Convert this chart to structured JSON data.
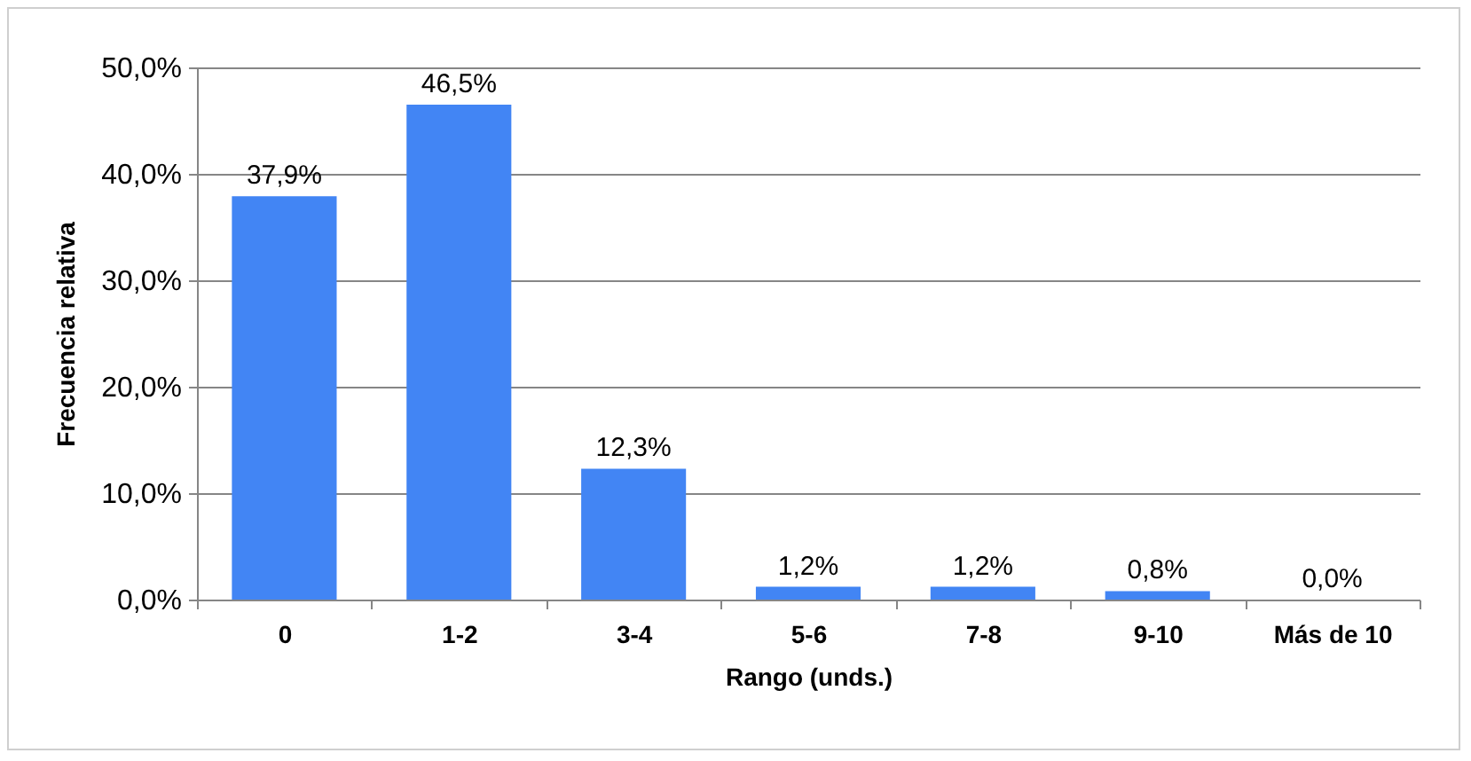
{
  "chart_data": {
    "type": "bar",
    "xlabel": "Rango (unds.)",
    "ylabel": "Frecuencia relativa",
    "categories": [
      "0",
      "1-2",
      "3-4",
      "5-6",
      "7-8",
      "9-10",
      "Más de 10"
    ],
    "values": [
      37.9,
      46.5,
      12.3,
      1.2,
      1.2,
      0.8,
      0.0
    ],
    "value_labels": [
      "37,9%",
      "46,5%",
      "12,3%",
      "1,2%",
      "1,2%",
      "0,8%",
      "0,0%"
    ],
    "color": "#4285f4",
    "ylim": [
      0,
      50
    ],
    "yticks": [
      {
        "value": 0,
        "label": "0,0%"
      },
      {
        "value": 10,
        "label": "10,0%"
      },
      {
        "value": 20,
        "label": "20,0%"
      },
      {
        "value": 30,
        "label": "30,0%"
      },
      {
        "value": 40,
        "label": "40,0%"
      },
      {
        "value": 50,
        "label": "50,0%"
      }
    ],
    "grid": "y"
  }
}
